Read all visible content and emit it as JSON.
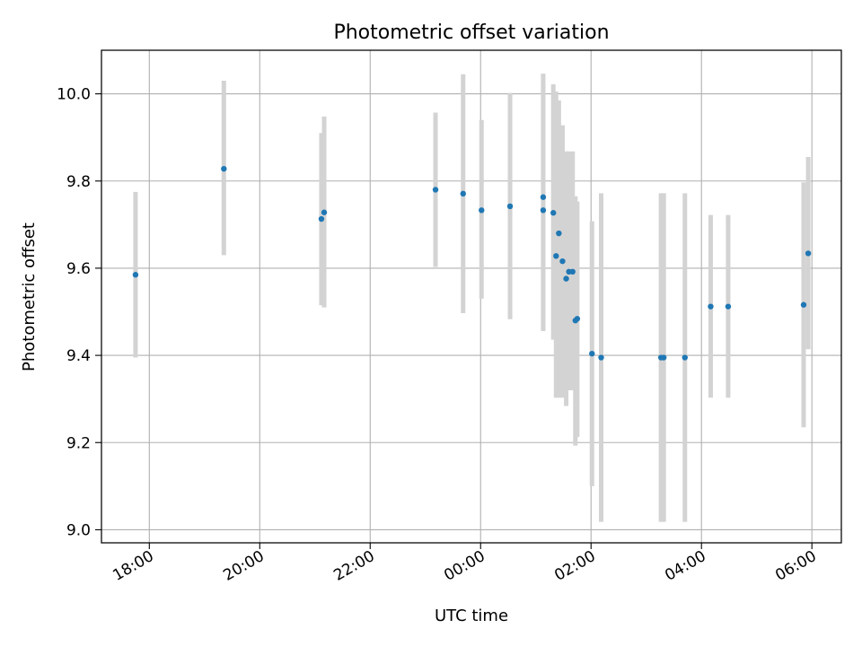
{
  "chart_data": {
    "type": "scatter",
    "title": "Photometric offset variation",
    "xlabel": "UTC time",
    "ylabel": "Photometric offset",
    "x_axis_type": "time",
    "x_range": [
      "17:12",
      "06:32"
    ],
    "xlim": [
      -412,
      392
    ],
    "ylim": [
      8.97,
      10.1
    ],
    "x_ticks": [
      {
        "value": -360,
        "label": "18:00"
      },
      {
        "value": -240,
        "label": "20:00"
      },
      {
        "value": -120,
        "label": "22:00"
      },
      {
        "value": 0,
        "label": "00:00"
      },
      {
        "value": 120,
        "label": "02:00"
      },
      {
        "value": 240,
        "label": "04:00"
      },
      {
        "value": 360,
        "label": "06:00"
      }
    ],
    "y_ticks": [
      {
        "value": 9.0,
        "label": "9.0"
      },
      {
        "value": 9.2,
        "label": "9.2"
      },
      {
        "value": 9.4,
        "label": "9.4"
      },
      {
        "value": 9.6,
        "label": "9.6"
      },
      {
        "value": 9.8,
        "label": "9.8"
      },
      {
        "value": 10.0,
        "label": "10.0"
      }
    ],
    "grid": true,
    "point_color": "#1f77b4",
    "errorbar_color": "#d3d3d3",
    "points": [
      {
        "t": "17:45",
        "x": -375,
        "y": 9.585,
        "lo": 9.395,
        "hi": 9.775
      },
      {
        "t": "19:21",
        "x": -279,
        "y": 9.828,
        "lo": 9.63,
        "hi": 10.03
      },
      {
        "t": "21:07",
        "x": -173,
        "y": 9.713,
        "lo": 9.515,
        "hi": 9.91
      },
      {
        "t": "21:10",
        "x": -170,
        "y": 9.728,
        "lo": 9.51,
        "hi": 9.948
      },
      {
        "t": "23:11",
        "x": -49,
        "y": 9.78,
        "lo": 9.603,
        "hi": 9.957
      },
      {
        "t": "23:41",
        "x": -19,
        "y": 9.771,
        "lo": 9.497,
        "hi": 10.045
      },
      {
        "t": "00:01",
        "x": 1,
        "y": 9.733,
        "lo": 9.53,
        "hi": 9.94
      },
      {
        "t": "00:32",
        "x": 32,
        "y": 9.742,
        "lo": 9.483,
        "hi": 10.002
      },
      {
        "t": "01:08",
        "x": 68,
        "y": 9.763,
        "lo": 9.456,
        "hi": 10.046
      },
      {
        "t": "01:08",
        "x": 68,
        "y": 9.733,
        "lo": 9.456,
        "hi": 10.046
      },
      {
        "t": "01:19",
        "x": 79,
        "y": 9.727,
        "lo": 9.436,
        "hi": 10.022
      },
      {
        "t": "01:22",
        "x": 82,
        "y": 9.628,
        "lo": 9.303,
        "hi": 10.005
      },
      {
        "t": "01:25",
        "x": 85,
        "y": 9.68,
        "lo": 9.303,
        "hi": 9.985
      },
      {
        "t": "01:29",
        "x": 89,
        "y": 9.616,
        "lo": 9.303,
        "hi": 9.928
      },
      {
        "t": "01:33",
        "x": 93,
        "y": 9.576,
        "lo": 9.284,
        "hi": 9.868
      },
      {
        "t": "01:36",
        "x": 96,
        "y": 9.592,
        "lo": 9.32,
        "hi": 9.868
      },
      {
        "t": "01:40",
        "x": 100,
        "y": 9.592,
        "lo": 9.32,
        "hi": 9.868
      },
      {
        "t": "01:43",
        "x": 103,
        "y": 9.48,
        "lo": 9.193,
        "hi": 9.765
      },
      {
        "t": "01:45",
        "x": 105,
        "y": 9.484,
        "lo": 9.213,
        "hi": 9.753
      },
      {
        "t": "02:01",
        "x": 121,
        "y": 9.404,
        "lo": 9.1,
        "hi": 9.708
      },
      {
        "t": "02:11",
        "x": 131,
        "y": 9.395,
        "lo": 9.018,
        "hi": 9.772
      },
      {
        "t": "03:16",
        "x": 196,
        "y": 9.395,
        "lo": 9.018,
        "hi": 9.772
      },
      {
        "t": "03:19",
        "x": 199,
        "y": 9.395,
        "lo": 9.018,
        "hi": 9.772
      },
      {
        "t": "03:42",
        "x": 222,
        "y": 9.395,
        "lo": 9.018,
        "hi": 9.772
      },
      {
        "t": "04:10",
        "x": 250,
        "y": 9.512,
        "lo": 9.303,
        "hi": 9.722
      },
      {
        "t": "04:29",
        "x": 269,
        "y": 9.512,
        "lo": 9.303,
        "hi": 9.722
      },
      {
        "t": "05:51",
        "x": 351,
        "y": 9.516,
        "lo": 9.235,
        "hi": 9.797
      },
      {
        "t": "05:56",
        "x": 356,
        "y": 9.634,
        "lo": 9.414,
        "hi": 9.855
      }
    ]
  }
}
